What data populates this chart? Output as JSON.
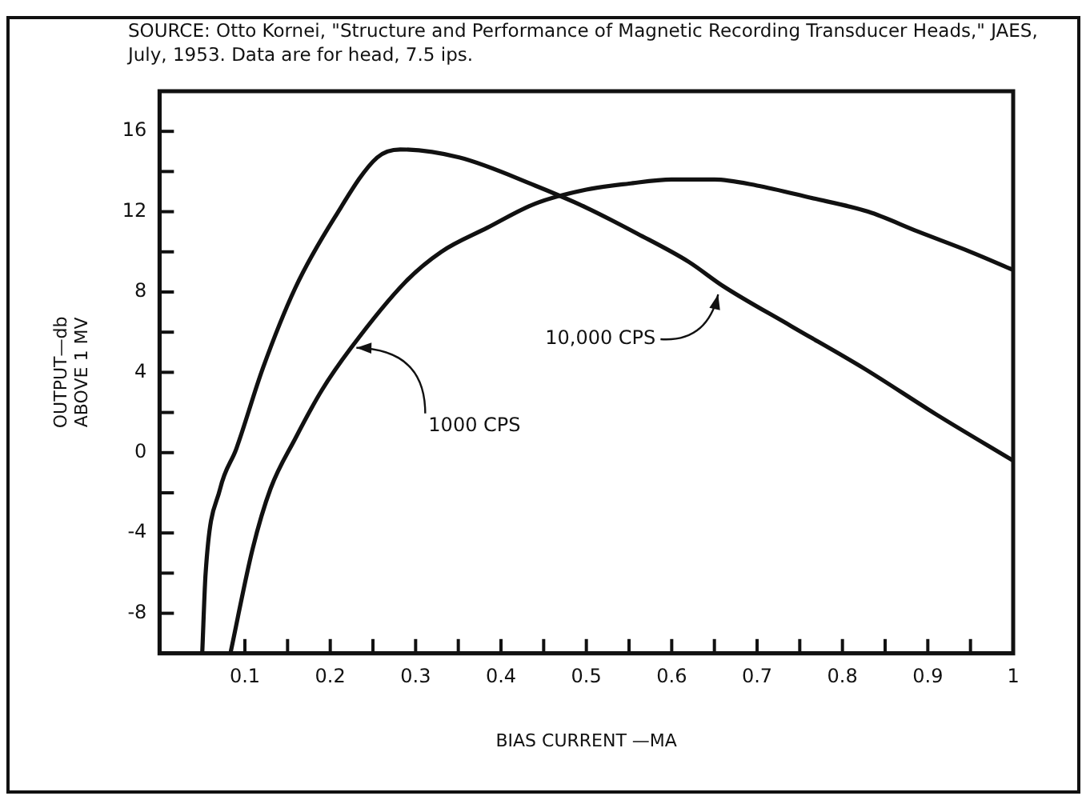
{
  "chart_data": {
    "type": "line",
    "xlabel": "BIAS CURRENT —MA",
    "ylabel": "OUTPUT—db\nABOVE 1 MV",
    "annotations": [
      "SOURCE: Otto Kornei, \"Structure and Performance of Magnetic Recording Transducer Heads,\" JAES, July, 1953. Data are for head, 7.5 ips.",
      {
        "text": "10,000 CPS",
        "x": 0.66,
        "y": 8.2
      },
      {
        "text": "1000 CPS",
        "x": 0.225,
        "y": 5.3
      }
    ],
    "series": [
      {
        "color": "#111111",
        "x": [
          0.05,
          0.054,
          0.071,
          0.09,
          0.121,
          0.159,
          0.205,
          0.255,
          0.282,
          0.351,
          0.44,
          0.5,
          0.56,
          0.62,
          0.66,
          0.74,
          0.825,
          0.91,
          1.0
        ],
        "values": [
          -10,
          -6,
          -1.8,
          0.2,
          4.2,
          8.2,
          11.7,
          14.7,
          15.1,
          14.7,
          13.3,
          12.2,
          10.9,
          9.5,
          8.3,
          6.3,
          4.2,
          1.9,
          -0.4
        ]
      },
      {
        "color": "#111111",
        "x": [
          0.083,
          0.109,
          0.13,
          0.159,
          0.19,
          0.224,
          0.288,
          0.33,
          0.384,
          0.44,
          0.5,
          0.55,
          0.6,
          0.65,
          0.7,
          0.762,
          0.83,
          0.889,
          0.95,
          1.0
        ],
        "values": [
          -10,
          -4.8,
          -1.8,
          0.7,
          3.1,
          5.2,
          8.5,
          10,
          11.2,
          12.4,
          13.1,
          13.4,
          13.6,
          13.6,
          13.3,
          12.7,
          12.0,
          11.0,
          10.0,
          9.1
        ]
      }
    ],
    "xlim": [
      0,
      1
    ],
    "xticks": [
      0.1,
      {
        "value": 0.15,
        "label": null
      },
      0.2,
      {
        "value": 0.25,
        "label": null
      },
      0.3,
      {
        "value": 0.35,
        "label": null
      },
      0.4,
      {
        "value": 0.45,
        "label": null
      },
      0.5,
      {
        "value": 0.55,
        "label": null
      },
      0.6,
      {
        "value": 0.65,
        "label": null
      },
      0.7,
      {
        "value": 0.75,
        "label": null
      },
      0.8,
      {
        "value": 0.85,
        "label": null
      },
      0.9,
      {
        "value": 0.95,
        "label": null
      },
      1
    ],
    "ylim": [
      -10,
      18
    ],
    "yticks": [
      -8,
      {
        "value": -6,
        "label": null
      },
      -4,
      {
        "value": -2,
        "label": null
      },
      0,
      {
        "value": 2,
        "label": null
      },
      4,
      {
        "value": 6,
        "label": null
      },
      8,
      {
        "value": 10,
        "label": null
      },
      12,
      {
        "value": 14,
        "label": null
      },
      16
    ],
    "grid": false,
    "legend": false,
    "marker": "none",
    "line_style": "solid"
  }
}
